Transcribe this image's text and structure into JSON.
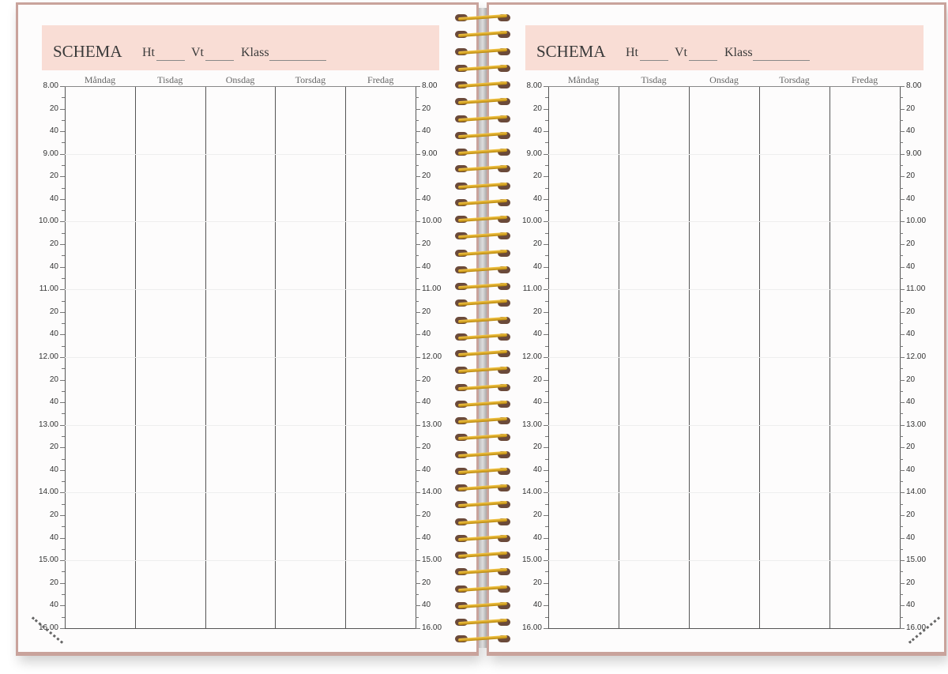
{
  "pages": [
    {
      "title": "SCHEMA",
      "fields": [
        "Ht",
        "Vt",
        "Klass"
      ]
    },
    {
      "title": "SCHEMA",
      "fields": [
        "Ht",
        "Vt",
        "Klass"
      ]
    }
  ],
  "days": [
    "Måndag",
    "Tisdag",
    "Onsdag",
    "Torsdag",
    "Fredag"
  ],
  "times": [
    "8.00",
    "20",
    "40",
    "9.00",
    "20",
    "40",
    "10.00",
    "20",
    "40",
    "11.00",
    "20",
    "40",
    "12.00",
    "20",
    "40",
    "13.00",
    "20",
    "40",
    "14.00",
    "20",
    "40",
    "15.00",
    "20",
    "40",
    "16.00"
  ],
  "colors": {
    "cover": "#c9a39c",
    "header_band": "#f9ddd5",
    "spiral": "#e0a82e"
  }
}
